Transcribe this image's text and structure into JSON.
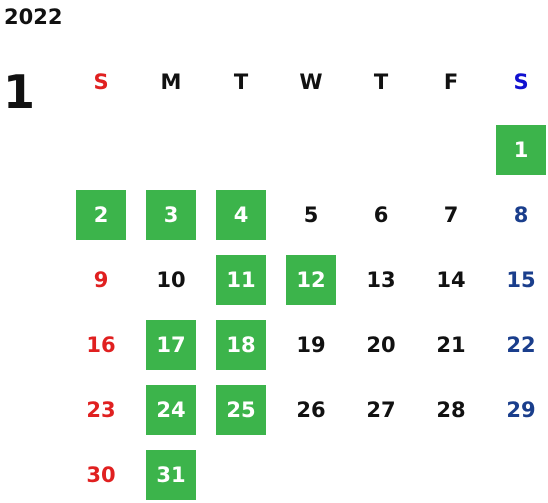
{
  "year": "2022",
  "month": "1",
  "weekdays": [
    "S",
    "M",
    "T",
    "W",
    "T",
    "F",
    "S"
  ],
  "colors": {
    "highlight": "#3cb44b",
    "sunday": "#e02020",
    "saturday": "#1a3e8c",
    "saturday_header": "#1010d0",
    "weekday": "#111111"
  },
  "weeks": [
    [
      {
        "day": "",
        "highlighted": false
      },
      {
        "day": "",
        "highlighted": false
      },
      {
        "day": "",
        "highlighted": false
      },
      {
        "day": "",
        "highlighted": false
      },
      {
        "day": "",
        "highlighted": false
      },
      {
        "day": "",
        "highlighted": false
      },
      {
        "day": "1",
        "highlighted": true
      }
    ],
    [
      {
        "day": "2",
        "highlighted": true
      },
      {
        "day": "3",
        "highlighted": true
      },
      {
        "day": "4",
        "highlighted": true
      },
      {
        "day": "5",
        "highlighted": false
      },
      {
        "day": "6",
        "highlighted": false
      },
      {
        "day": "7",
        "highlighted": false
      },
      {
        "day": "8",
        "highlighted": false
      }
    ],
    [
      {
        "day": "9",
        "highlighted": false
      },
      {
        "day": "10",
        "highlighted": false
      },
      {
        "day": "11",
        "highlighted": true
      },
      {
        "day": "12",
        "highlighted": true
      },
      {
        "day": "13",
        "highlighted": false
      },
      {
        "day": "14",
        "highlighted": false
      },
      {
        "day": "15",
        "highlighted": false
      }
    ],
    [
      {
        "day": "16",
        "highlighted": false
      },
      {
        "day": "17",
        "highlighted": true
      },
      {
        "day": "18",
        "highlighted": true
      },
      {
        "day": "19",
        "highlighted": false
      },
      {
        "day": "20",
        "highlighted": false
      },
      {
        "day": "21",
        "highlighted": false
      },
      {
        "day": "22",
        "highlighted": false
      }
    ],
    [
      {
        "day": "23",
        "highlighted": false
      },
      {
        "day": "24",
        "highlighted": true
      },
      {
        "day": "25",
        "highlighted": true
      },
      {
        "day": "26",
        "highlighted": false
      },
      {
        "day": "27",
        "highlighted": false
      },
      {
        "day": "28",
        "highlighted": false
      },
      {
        "day": "29",
        "highlighted": false
      }
    ],
    [
      {
        "day": "30",
        "highlighted": false
      },
      {
        "day": "31",
        "highlighted": true
      },
      {
        "day": "",
        "highlighted": false
      },
      {
        "day": "",
        "highlighted": false
      },
      {
        "day": "",
        "highlighted": false
      },
      {
        "day": "",
        "highlighted": false
      },
      {
        "day": "",
        "highlighted": false
      }
    ]
  ]
}
